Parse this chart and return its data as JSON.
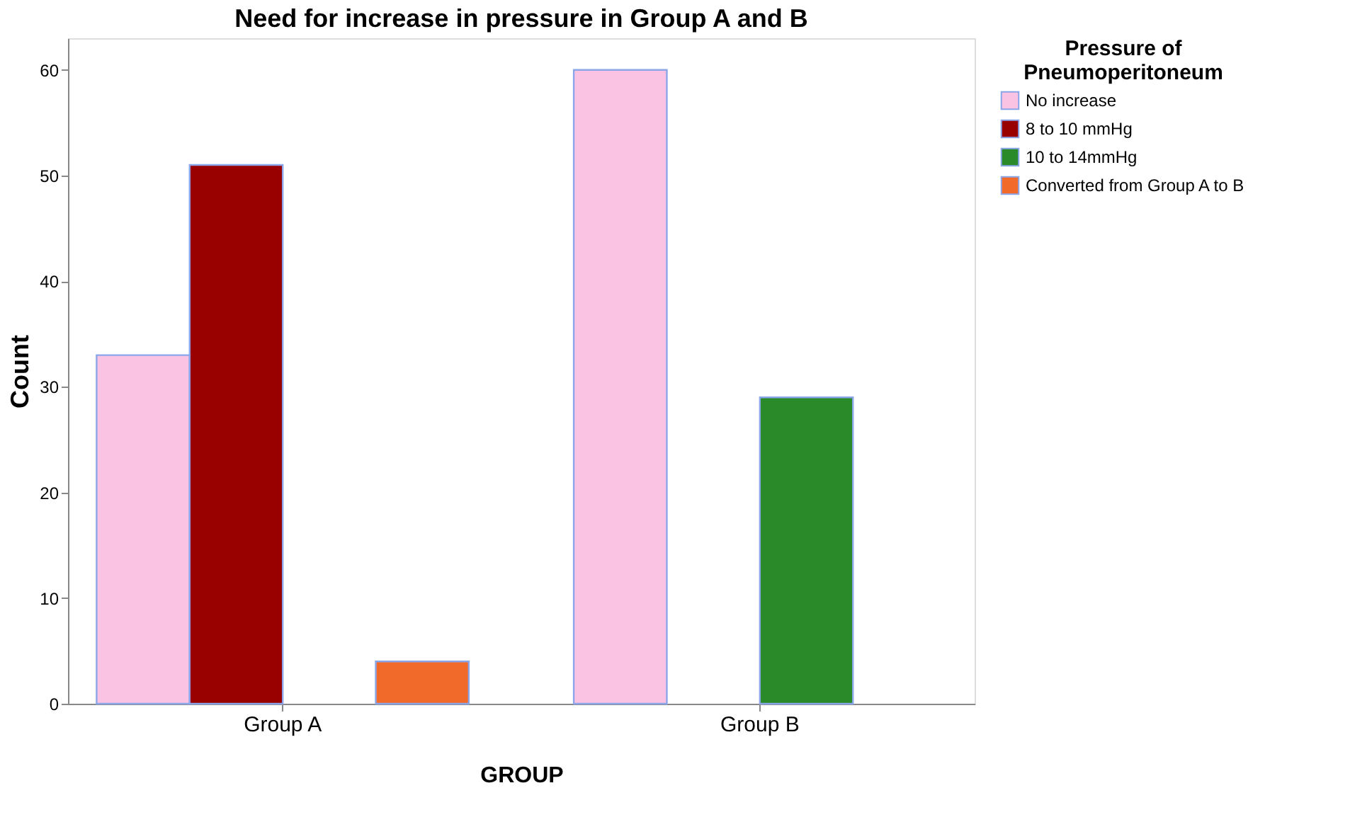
{
  "chart_data": {
    "type": "bar",
    "title": "Need for increase in pressure in Group A and B",
    "xlabel": "GROUP",
    "ylabel": "Count",
    "legend_title": "Pressure of Pneumoperitoneum",
    "legend": "top right",
    "grid": false,
    "categories": [
      "Group A",
      "Group B"
    ],
    "series": [
      {
        "name": "No increase",
        "color": "#fbc3e3",
        "values": [
          33,
          60
        ]
      },
      {
        "name": "8 to 10 mmHg",
        "color": "#990000",
        "values": [
          51,
          null
        ]
      },
      {
        "name": "10 to 14mmHg",
        "color": "#2a8a2a",
        "values": [
          null,
          29
        ]
      },
      {
        "name": "Converted from Group A to B",
        "color": "#f26a2a",
        "values": [
          4,
          null
        ]
      }
    ],
    "ylim": [
      0,
      63
    ],
    "yticks": [
      0,
      10,
      20,
      30,
      40,
      50,
      60
    ]
  }
}
